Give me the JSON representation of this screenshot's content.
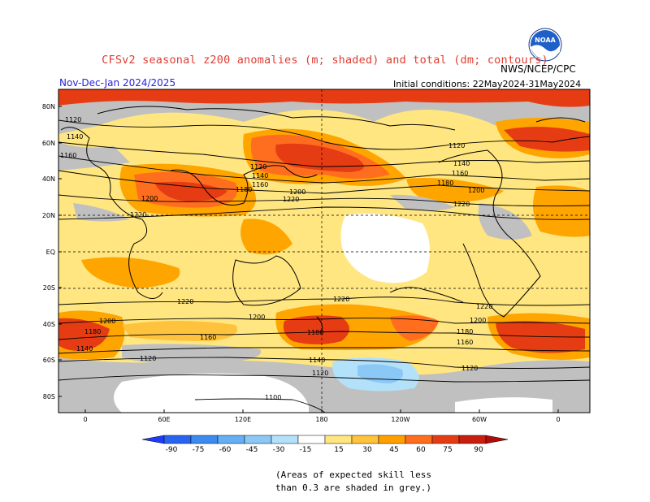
{
  "header": {
    "title": "CFSv2 seasonal z200 anomalies (m; shaded) and total (dm; contours)",
    "agency": "NWS/NCEP/CPC",
    "season": "Nov-Dec-Jan 2024/2025",
    "initial_conditions": "Initial conditions: 22May2024-31May2024",
    "logo_text": "NOAA"
  },
  "map": {
    "lat_labels": [
      "80N",
      "60N",
      "40N",
      "20N",
      "EQ",
      "20S",
      "40S",
      "60S",
      "80S"
    ],
    "lon_labels": [
      "0",
      "60E",
      "120E",
      "180",
      "120W",
      "60W",
      "0"
    ],
    "contour_labels": [
      "1120",
      "1140",
      "1160",
      "1180",
      "1200",
      "1220",
      "1100"
    ],
    "colors": {
      "grey": "#c0c0c0",
      "yellow": "#ffe680",
      "orange": "#ffa500",
      "dark_orange": "#ff6e1e",
      "red": "#e63c14",
      "dark_red": "#b40a0a",
      "light_blue": "#a0d2f5",
      "white": "#ffffff"
    }
  },
  "colorbar": {
    "ticks": [
      "-90",
      "-75",
      "-60",
      "-45",
      "-30",
      "-15",
      "15",
      "30",
      "45",
      "60",
      "75",
      "90"
    ],
    "colors": [
      "#1e3cff",
      "#2864f0",
      "#3c8cf0",
      "#64aff5",
      "#8cc8f5",
      "#b4e1fa",
      "#ffffff",
      "#ffe680",
      "#ffc23c",
      "#ffa000",
      "#ff6e1e",
      "#e63c14",
      "#b40a0a"
    ]
  },
  "footnote": {
    "line1": "(Areas of expected skill less",
    "line2": "than 0.3 are shaded in grey.)"
  }
}
